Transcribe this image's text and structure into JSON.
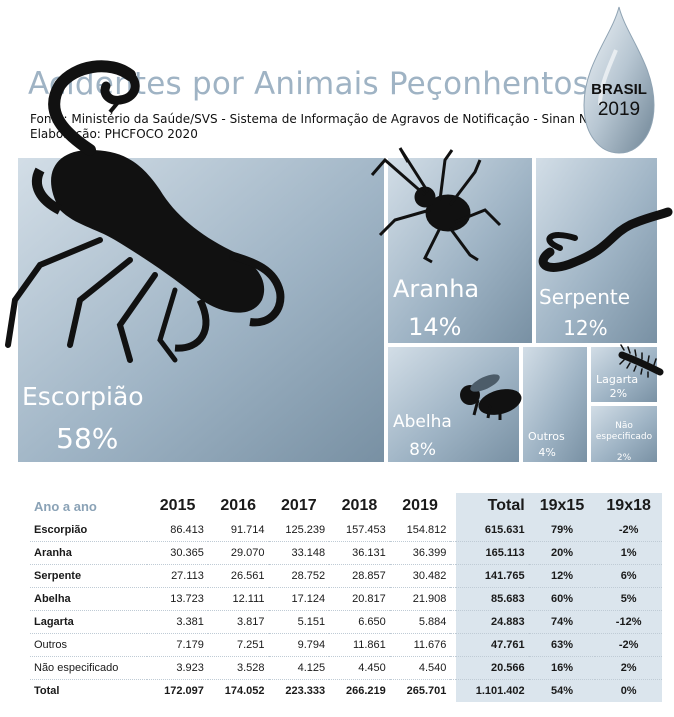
{
  "header": {
    "title": "Acidentes por Animais Peçonhentos",
    "source": "Fonte: Ministério da Saúde/SVS - Sistema de Informação de Agravos de Notificação - Sinan Net",
    "elaboration": "Elaboração: PHCFOCO 2020",
    "badge_country": "BRASIL",
    "badge_year": "2019"
  },
  "colors": {
    "title": "#9fb3c4",
    "treemap": "#a9bccb",
    "table_highlight": "#dbe5ed"
  },
  "chart_data": {
    "type": "treemap",
    "items": [
      {
        "label": "Escorpião",
        "pct_label": "58%",
        "value": 58
      },
      {
        "label": "Aranha",
        "pct_label": "14%",
        "value": 14
      },
      {
        "label": "Serpente",
        "pct_label": "12%",
        "value": 12
      },
      {
        "label": "Abelha",
        "pct_label": "8%",
        "value": 8
      },
      {
        "label": "Outros",
        "pct_label": "4%",
        "value": 4
      },
      {
        "label": "Lagarta",
        "pct_label": "2%",
        "value": 2
      },
      {
        "label": "Não especificado",
        "pct_label": "2%",
        "value": 2
      }
    ]
  },
  "table": {
    "headers": [
      "Ano a ano",
      "2015",
      "2016",
      "2017",
      "2018",
      "2019",
      "Total",
      "19x15",
      "19x18"
    ],
    "rows": [
      [
        "Escorpião",
        "86.413",
        "91.714",
        "125.239",
        "157.453",
        "154.812",
        "615.631",
        "79%",
        "-2%"
      ],
      [
        "Aranha",
        "30.365",
        "29.070",
        "33.148",
        "36.131",
        "36.399",
        "165.113",
        "20%",
        "1%"
      ],
      [
        "Serpente",
        "27.113",
        "26.561",
        "28.752",
        "28.857",
        "30.482",
        "141.765",
        "12%",
        "6%"
      ],
      [
        "Abelha",
        "13.723",
        "12.111",
        "17.124",
        "20.817",
        "21.908",
        "85.683",
        "60%",
        "5%"
      ],
      [
        "Lagarta",
        "3.381",
        "3.817",
        "5.151",
        "6.650",
        "5.884",
        "24.883",
        "74%",
        "-12%"
      ],
      [
        "Outros",
        "7.179",
        "7.251",
        "9.794",
        "11.861",
        "11.676",
        "47.761",
        "63%",
        "-2%"
      ],
      [
        "Não especificado",
        "3.923",
        "3.528",
        "4.125",
        "4.450",
        "4.540",
        "20.566",
        "16%",
        "2%"
      ],
      [
        "Total",
        "172.097",
        "174.052",
        "223.333",
        "266.219",
        "265.701",
        "1.101.402",
        "54%",
        "0%"
      ]
    ]
  }
}
